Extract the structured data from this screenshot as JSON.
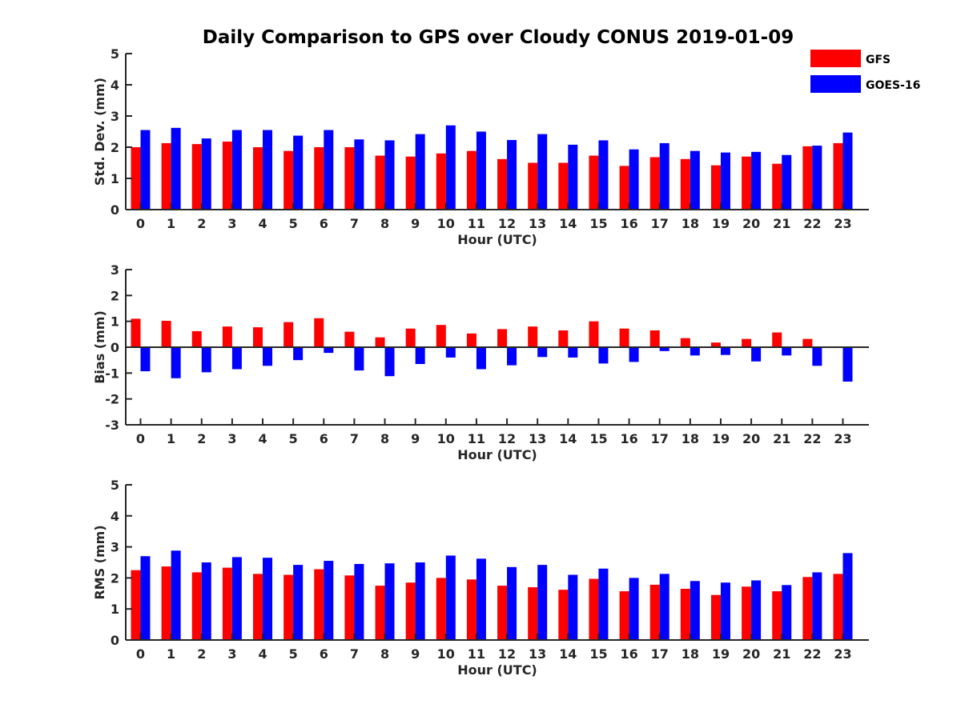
{
  "title": "Daily Comparison to GPS over Cloudy CONUS 2019-01-09",
  "legend": [
    {
      "name": "GFS",
      "color": "#ff0000"
    },
    {
      "name": "GOES-16",
      "color": "#0000ff"
    }
  ],
  "chart_data": [
    {
      "type": "bar",
      "xlabel": "Hour (UTC)",
      "ylabel": "Std. Dev. (mm)",
      "ylim": [
        0,
        5
      ],
      "yticks": [
        0,
        1,
        2,
        3,
        4,
        5
      ],
      "categories": [
        "0",
        "1",
        "2",
        "3",
        "4",
        "5",
        "6",
        "7",
        "8",
        "9",
        "10",
        "11",
        "12",
        "13",
        "14",
        "15",
        "16",
        "17",
        "18",
        "19",
        "20",
        "21",
        "22",
        "23"
      ],
      "series": [
        {
          "name": "GFS",
          "color": "#ff0000",
          "values": [
            2.0,
            2.13,
            2.1,
            2.18,
            2.0,
            1.88,
            2.0,
            2.0,
            1.73,
            1.7,
            1.8,
            1.88,
            1.62,
            1.5,
            1.5,
            1.73,
            1.4,
            1.68,
            1.62,
            1.42,
            1.7,
            1.47,
            2.03,
            2.13
          ]
        },
        {
          "name": "GOES-16",
          "color": "#0000ff",
          "values": [
            2.55,
            2.62,
            2.28,
            2.55,
            2.55,
            2.37,
            2.55,
            2.25,
            2.22,
            2.42,
            2.7,
            2.5,
            2.23,
            2.42,
            2.08,
            2.22,
            1.93,
            2.13,
            1.88,
            1.83,
            1.85,
            1.75,
            2.05,
            2.47
          ]
        }
      ]
    },
    {
      "type": "bar",
      "xlabel": "Hour (UTC)",
      "ylabel": "Bias (mm)",
      "ylim": [
        -3,
        3
      ],
      "yticks": [
        -3,
        -2,
        -1,
        0,
        1,
        2,
        3
      ],
      "categories": [
        "0",
        "1",
        "2",
        "3",
        "4",
        "5",
        "6",
        "7",
        "8",
        "9",
        "10",
        "11",
        "12",
        "13",
        "14",
        "15",
        "16",
        "17",
        "18",
        "19",
        "20",
        "21",
        "22",
        "23"
      ],
      "series": [
        {
          "name": "GFS",
          "color": "#ff0000",
          "values": [
            1.1,
            1.02,
            0.62,
            0.8,
            0.77,
            0.97,
            1.12,
            0.6,
            0.38,
            0.72,
            0.86,
            0.53,
            0.7,
            0.8,
            0.65,
            1.0,
            0.72,
            0.65,
            0.35,
            0.18,
            0.32,
            0.57,
            0.32,
            0.0
          ]
        },
        {
          "name": "GOES-16",
          "color": "#0000ff",
          "values": [
            -0.93,
            -1.2,
            -0.97,
            -0.85,
            -0.72,
            -0.5,
            -0.22,
            -0.9,
            -1.12,
            -0.65,
            -0.4,
            -0.85,
            -0.7,
            -0.38,
            -0.4,
            -0.63,
            -0.57,
            -0.15,
            -0.32,
            -0.3,
            -0.55,
            -0.32,
            -0.72,
            -1.33
          ]
        }
      ]
    },
    {
      "type": "bar",
      "xlabel": "Hour (UTC)",
      "ylabel": "RMS (mm)",
      "ylim": [
        0,
        5
      ],
      "yticks": [
        0,
        1,
        2,
        3,
        4,
        5
      ],
      "categories": [
        "0",
        "1",
        "2",
        "3",
        "4",
        "5",
        "6",
        "7",
        "8",
        "9",
        "10",
        "11",
        "12",
        "13",
        "14",
        "15",
        "16",
        "17",
        "18",
        "19",
        "20",
        "21",
        "22",
        "23"
      ],
      "series": [
        {
          "name": "GFS",
          "color": "#ff0000",
          "values": [
            2.25,
            2.37,
            2.18,
            2.33,
            2.13,
            2.1,
            2.28,
            2.08,
            1.75,
            1.85,
            2.0,
            1.95,
            1.75,
            1.7,
            1.62,
            1.97,
            1.57,
            1.78,
            1.65,
            1.45,
            1.72,
            1.57,
            2.03,
            2.13
          ]
        },
        {
          "name": "GOES-16",
          "color": "#0000ff",
          "values": [
            2.7,
            2.88,
            2.5,
            2.67,
            2.65,
            2.42,
            2.55,
            2.45,
            2.47,
            2.5,
            2.72,
            2.62,
            2.35,
            2.42,
            2.1,
            2.3,
            2.0,
            2.13,
            1.9,
            1.85,
            1.92,
            1.77,
            2.18,
            2.8
          ]
        }
      ]
    }
  ]
}
